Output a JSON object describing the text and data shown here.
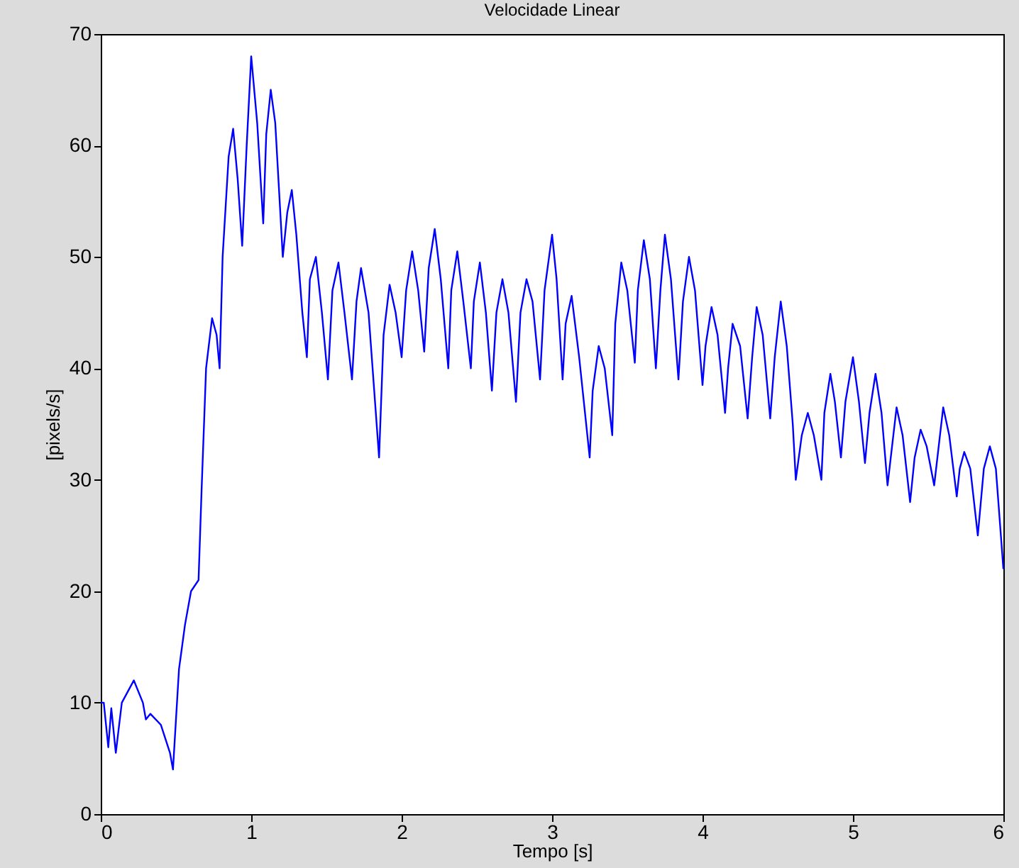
{
  "chart_data": {
    "type": "line",
    "title": "Velocidade Linear",
    "xlabel": "Tempo [s]",
    "ylabel": "[pixels/s]",
    "xlim": [
      0,
      6
    ],
    "xticks": [
      0,
      1,
      2,
      3,
      4,
      5,
      6
    ],
    "ylim": [
      0,
      70
    ],
    "yticks": [
      0,
      10,
      20,
      30,
      40,
      50,
      60,
      70
    ],
    "grid": false,
    "legend": false,
    "marker": "none",
    "line_style": "solid",
    "series": [
      {
        "color": "#0000ff",
        "x": [
          0,
          0.02,
          0.05,
          0.07,
          0.1,
          0.14,
          0.22,
          0.28,
          0.3,
          0.33,
          0.4,
          0.46,
          0.48,
          0.52,
          0.56,
          0.6,
          0.65,
          0.67,
          0.7,
          0.74,
          0.77,
          0.79,
          0.81,
          0.85,
          0.88,
          0.91,
          0.94,
          0.97,
          1.0,
          1.04,
          1.08,
          1.1,
          1.13,
          1.16,
          1.21,
          1.24,
          1.27,
          1.3,
          1.34,
          1.37,
          1.39,
          1.43,
          1.47,
          1.51,
          1.54,
          1.58,
          1.62,
          1.67,
          1.7,
          1.73,
          1.78,
          1.85,
          1.88,
          1.92,
          1.96,
          2.0,
          2.03,
          2.07,
          2.11,
          2.15,
          2.18,
          2.22,
          2.26,
          2.31,
          2.33,
          2.37,
          2.41,
          2.46,
          2.48,
          2.52,
          2.56,
          2.6,
          2.63,
          2.67,
          2.71,
          2.76,
          2.79,
          2.83,
          2.87,
          2.92,
          2.95,
          3.0,
          3.03,
          3.07,
          3.09,
          3.13,
          3.18,
          3.25,
          3.27,
          3.31,
          3.35,
          3.4,
          3.42,
          3.46,
          3.5,
          3.55,
          3.57,
          3.61,
          3.65,
          3.69,
          3.72,
          3.75,
          3.79,
          3.84,
          3.87,
          3.91,
          3.95,
          4.0,
          4.02,
          4.06,
          4.1,
          4.15,
          4.17,
          4.2,
          4.25,
          4.3,
          4.33,
          4.36,
          4.4,
          4.45,
          4.48,
          4.52,
          4.56,
          4.6,
          4.62,
          4.66,
          4.7,
          4.74,
          4.79,
          4.81,
          4.85,
          4.88,
          4.92,
          4.95,
          5.0,
          5.04,
          5.08,
          5.11,
          5.15,
          5.19,
          5.23,
          5.26,
          5.29,
          5.33,
          5.38,
          5.41,
          5.45,
          5.49,
          5.54,
          5.57,
          5.6,
          5.64,
          5.69,
          5.71,
          5.74,
          5.78,
          5.83,
          5.87,
          5.91,
          5.95,
          6.0
        ],
        "values": [
          10,
          10,
          6,
          9.5,
          5.5,
          10,
          12,
          10,
          8.5,
          9,
          8,
          5.5,
          4,
          13,
          17,
          20,
          21,
          29,
          40,
          44.5,
          43,
          40,
          50,
          59,
          61.5,
          57,
          51,
          60,
          68,
          62,
          53,
          61,
          65,
          62,
          50,
          54,
          56,
          52,
          45,
          41,
          48,
          50,
          45,
          39,
          47,
          49.5,
          45,
          39,
          46,
          49,
          45,
          32,
          43,
          47.5,
          45,
          41,
          47,
          50.5,
          47,
          41.5,
          49,
          52.5,
          48,
          40,
          47,
          50.5,
          46,
          40,
          46,
          49.5,
          45,
          38,
          45,
          48,
          45,
          37,
          45,
          48,
          46,
          39,
          47,
          52,
          48,
          39,
          44,
          46.5,
          41,
          32,
          38,
          42,
          40,
          34,
          44,
          49.5,
          47,
          40.5,
          47,
          51.5,
          48,
          40,
          47,
          52,
          48,
          39,
          46,
          50,
          47,
          38.5,
          42,
          45.5,
          43,
          36,
          40,
          44,
          42,
          35.5,
          41,
          45.5,
          43,
          35.5,
          41,
          46,
          42,
          35,
          30,
          34,
          36,
          34,
          30,
          36,
          39.5,
          37,
          32,
          37,
          41,
          37,
          31.5,
          36,
          39.5,
          36,
          29.5,
          33,
          36.5,
          34,
          28,
          32,
          34.5,
          33,
          29.5,
          33,
          36.5,
          34,
          28.5,
          31,
          32.5,
          31,
          25,
          31,
          33,
          31,
          22
        ]
      }
    ]
  }
}
